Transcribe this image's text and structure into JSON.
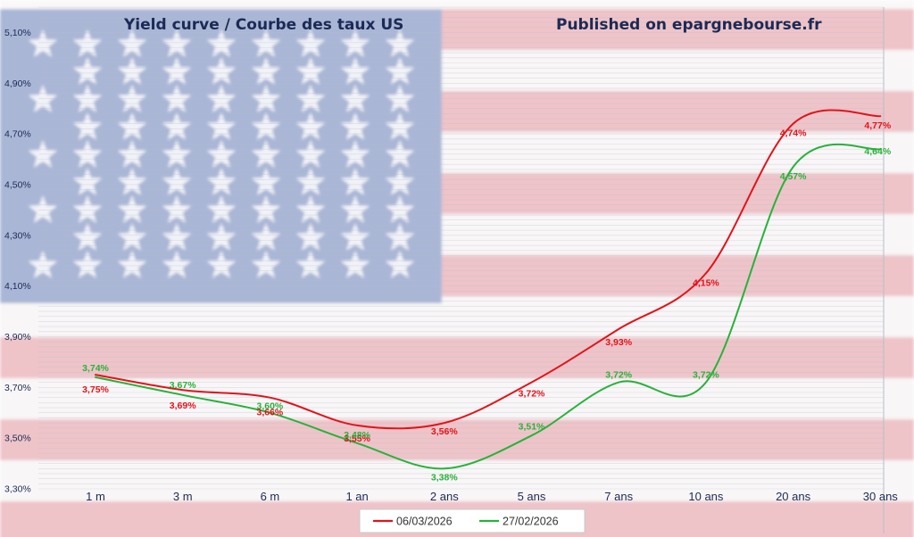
{
  "title": "Yield curve / Courbe des taux US",
  "subtitle": "Published on epargnebourse.fr",
  "colors": {
    "series_red": "#e3131a",
    "series_green": "#27b23a",
    "text_dark": "#1c2a55",
    "flag_blue": "#7b90c2",
    "flag_red": "#e6a5ad"
  },
  "background_image": "us-flag",
  "chart_data": {
    "type": "line",
    "title": "Yield curve / Courbe des taux US",
    "categories": [
      "1 m",
      "3 m",
      "6 m",
      "1 an",
      "2 ans",
      "5 ans",
      "7 ans",
      "10 ans",
      "20 ans",
      "30 ans"
    ],
    "ylim": [
      3.3,
      5.2
    ],
    "yticks": [
      "3,30%",
      "3,50%",
      "3,70%",
      "3,90%",
      "4,10%",
      "4,30%",
      "4,50%",
      "4,70%",
      "4,90%",
      "5,10%"
    ],
    "ytick_values": [
      3.3,
      3.5,
      3.7,
      3.9,
      4.1,
      4.3,
      4.5,
      4.7,
      4.9,
      5.1
    ],
    "grid": true,
    "smooth": true,
    "legend_position": "bottom",
    "series": [
      {
        "name": "06/03/2026",
        "color": "#e3131a",
        "values": [
          3.75,
          3.69,
          3.66,
          3.55,
          3.56,
          3.72,
          3.93,
          4.15,
          4.74,
          4.77
        ],
        "labels": [
          "3,75%",
          "3,69%",
          "3,66%",
          "3,55%",
          "3,56%",
          "3,72%",
          "3,93%",
          "4,15%",
          "4,74%",
          "4,77%"
        ]
      },
      {
        "name": "27/02/2026",
        "color": "#27b23a",
        "values": [
          3.74,
          3.67,
          3.6,
          3.48,
          3.38,
          3.51,
          3.72,
          3.72,
          4.57,
          4.64
        ],
        "labels": [
          "3,74%",
          "3,67%",
          "3,60%",
          "3,48%",
          "3,38%",
          "3,51%",
          "3,72%",
          "3,72%",
          "4,57%",
          "4,64%"
        ]
      }
    ]
  }
}
